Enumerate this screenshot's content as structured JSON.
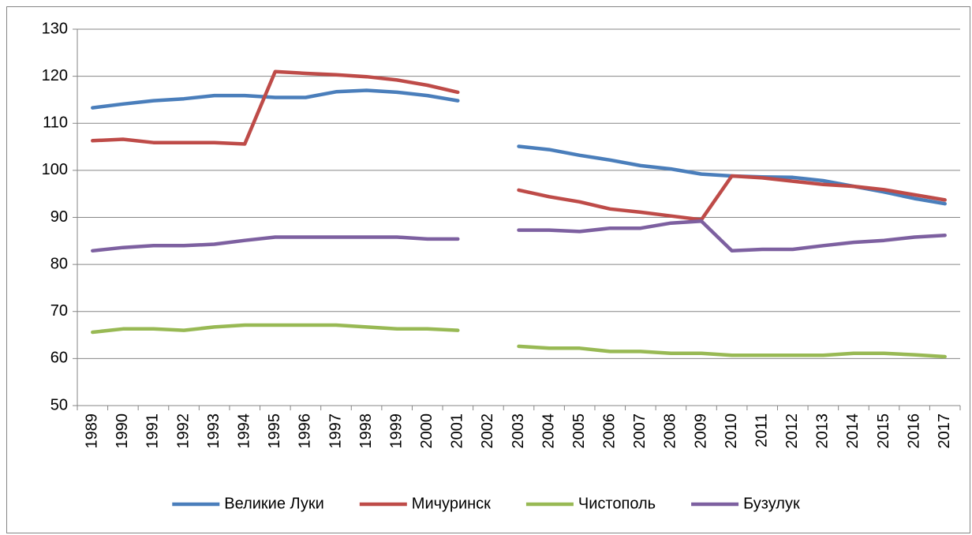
{
  "chart_data": {
    "type": "line",
    "categories": [
      "1989",
      "1990",
      "1991",
      "1992",
      "1993",
      "1994",
      "1995",
      "1996",
      "1997",
      "1998",
      "1999",
      "2000",
      "2001",
      "2002",
      "2003",
      "2004",
      "2005",
      "2006",
      "2007",
      "2008",
      "2009",
      "2010",
      "2011",
      "2012",
      "2013",
      "2014",
      "2015",
      "2016",
      "2017"
    ],
    "series": [
      {
        "name": "Великие Луки",
        "color": "#4a7ebb",
        "values": [
          113.3,
          114.1,
          114.8,
          115.2,
          115.9,
          115.9,
          115.5,
          115.5,
          116.7,
          117.0,
          116.6,
          115.9,
          114.8,
          null,
          105.1,
          104.4,
          103.2,
          102.2,
          101.0,
          100.3,
          99.2,
          98.8,
          98.6,
          98.5,
          97.8,
          96.6,
          95.4,
          94.0,
          92.9
        ]
      },
      {
        "name": "Мичуринск",
        "color": "#be4b48",
        "values": [
          106.3,
          106.6,
          105.9,
          105.9,
          105.9,
          105.6,
          121.0,
          120.6,
          120.3,
          119.9,
          119.2,
          118.1,
          116.6,
          null,
          95.8,
          94.4,
          93.3,
          91.8,
          91.1,
          90.3,
          89.5,
          98.8,
          98.4,
          97.7,
          97.0,
          96.6,
          95.9,
          94.8,
          93.7
        ]
      },
      {
        "name": "Чистополь",
        "color": "#98b954",
        "values": [
          65.6,
          66.3,
          66.3,
          66.0,
          66.7,
          67.1,
          67.1,
          67.1,
          67.1,
          66.7,
          66.3,
          66.3,
          66.0,
          null,
          62.6,
          62.2,
          62.2,
          61.5,
          61.5,
          61.1,
          61.1,
          60.7,
          60.7,
          60.7,
          60.7,
          61.1,
          61.1,
          60.8,
          60.4
        ]
      },
      {
        "name": "Бузулук",
        "color": "#7d60a0",
        "values": [
          82.9,
          83.6,
          84.0,
          84.0,
          84.3,
          85.1,
          85.8,
          85.8,
          85.8,
          85.8,
          85.8,
          85.4,
          85.4,
          null,
          87.3,
          87.3,
          87.0,
          87.7,
          87.7,
          88.8,
          89.2,
          82.9,
          83.2,
          83.2,
          84.0,
          84.7,
          85.1,
          85.8,
          86.2
        ]
      }
    ],
    "ylim": [
      50,
      130
    ],
    "yticks": [
      50,
      60,
      70,
      80,
      90,
      100,
      110,
      120,
      130
    ],
    "grid": true,
    "legend": "bottom"
  }
}
